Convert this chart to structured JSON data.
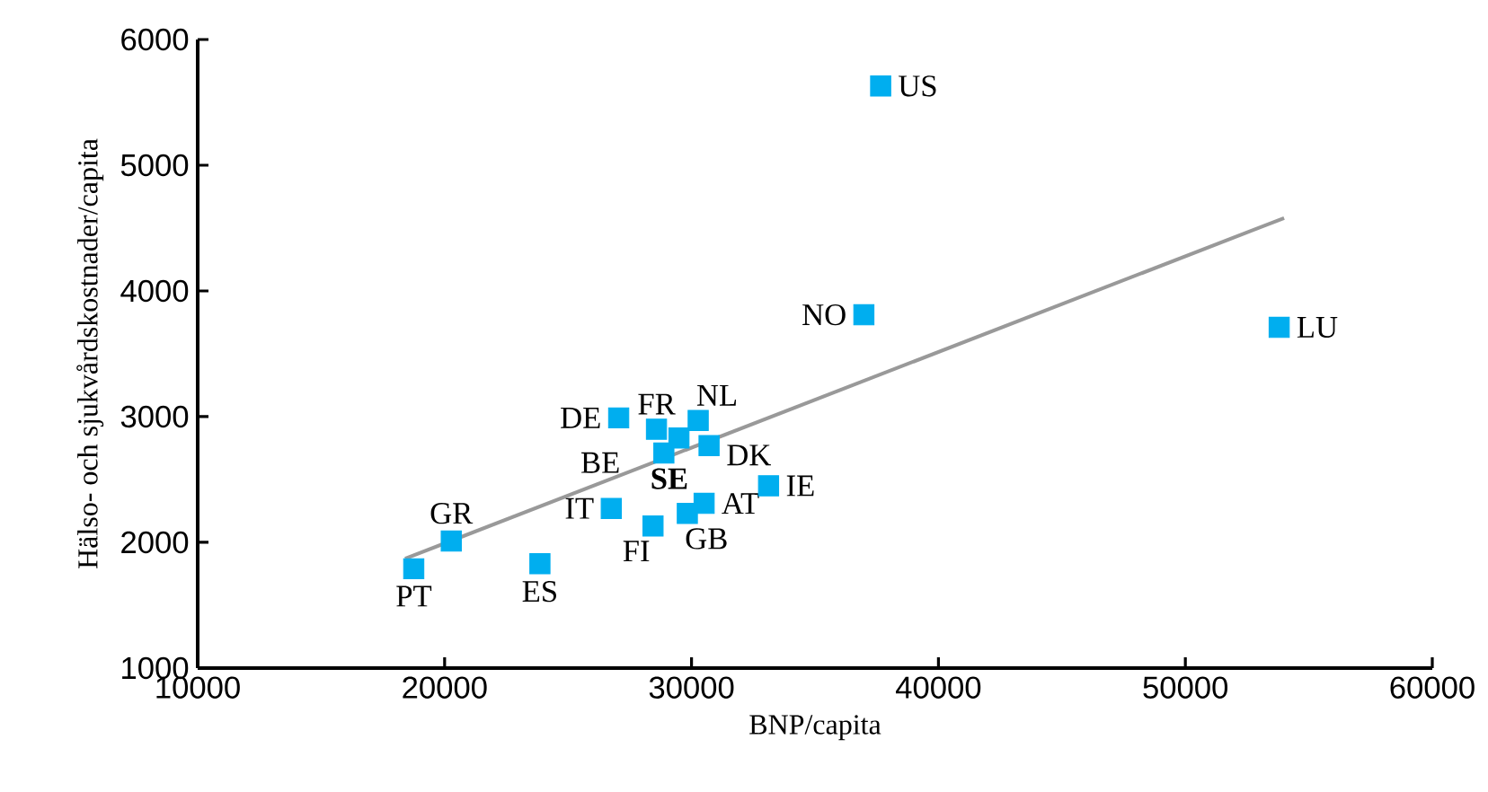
{
  "chart_data": {
    "type": "scatter",
    "xlabel": "BNP/capita",
    "ylabel": "Hälso- och sjukvårdskostnader/capita",
    "xlim": [
      10000,
      60000
    ],
    "ylim": [
      1000,
      6000
    ],
    "xticks": [
      10000,
      20000,
      30000,
      40000,
      50000,
      60000
    ],
    "yticks": [
      1000,
      2000,
      3000,
      4000,
      5000,
      6000
    ],
    "grid": false,
    "series": [
      {
        "marker": "square",
        "color": "#00aeef",
        "x": [
          37660,
          36980,
          53800,
          27050,
          28580,
          30270,
          28880,
          29490,
          30710,
          33120,
          26750,
          30510,
          29830,
          28440,
          20270,
          18750,
          23860
        ],
        "values": [
          5630,
          3810,
          3710,
          2990,
          2900,
          2970,
          2710,
          2830,
          2770,
          2450,
          2270,
          2310,
          2230,
          2130,
          2010,
          1790,
          1830
        ]
      },
      {
        "type": "line",
        "marker": "none",
        "color": "#999999",
        "x": [
          18400,
          54000
        ],
        "values": [
          1870,
          4580
        ]
      }
    ],
    "annotations": [
      {
        "text": "US",
        "x": 37660,
        "y": 5630
      },
      {
        "text": "NO",
        "x": 36980,
        "y": 3810
      },
      {
        "text": "LU",
        "x": 53800,
        "y": 3710
      },
      {
        "text": "DE",
        "x": 27050,
        "y": 2990
      },
      {
        "text": "FR",
        "x": 28580,
        "y": 2900
      },
      {
        "text": "NL",
        "x": 30270,
        "y": 2970
      },
      {
        "text": "BE",
        "x": 28880,
        "y": 2710
      },
      {
        "text": "**SE**",
        "x": 29490,
        "y": 2830
      },
      {
        "text": "DK",
        "x": 30710,
        "y": 2770
      },
      {
        "text": "IE",
        "x": 33120,
        "y": 2450
      },
      {
        "text": "IT",
        "x": 26750,
        "y": 2270
      },
      {
        "text": "AT",
        "x": 30510,
        "y": 2310
      },
      {
        "text": "GB",
        "x": 29830,
        "y": 2230
      },
      {
        "text": "FI",
        "x": 28440,
        "y": 2130
      },
      {
        "text": "GR",
        "x": 20270,
        "y": 2010
      },
      {
        "text": "PT",
        "x": 18750,
        "y": 1790
      },
      {
        "text": "ES",
        "x": 23860,
        "y": 1830
      }
    ]
  }
}
